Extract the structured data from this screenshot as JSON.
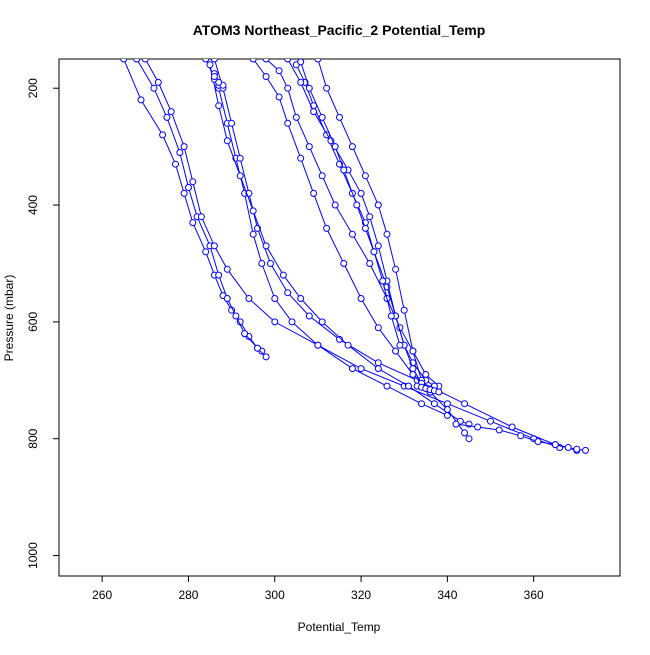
{
  "chart_data": {
    "type": "line",
    "title": "ATOM3 Northeast_Pacific_2 Potential_Temp",
    "xlabel": "Potential_Temp",
    "ylabel": "Pressure (mbar)",
    "xlim": [
      250,
      380
    ],
    "ylim": [
      1035,
      150
    ],
    "y_axis_inverted": true,
    "x_ticks": [
      "260",
      "280",
      "300",
      "320",
      "340",
      "360"
    ],
    "y_ticks": [
      "200",
      "400",
      "600",
      "800",
      "1000"
    ],
    "grid": false,
    "legend": "none",
    "line_color": "#0000ff",
    "marker": "open-circle",
    "series": [
      {
        "x": [
          265,
          269,
          274,
          277,
          279,
          281,
          284,
          286,
          288,
          290,
          292,
          294,
          296,
          297
        ],
        "y": [
          150,
          220,
          280,
          330,
          380,
          430,
          480,
          520,
          555,
          580,
          600,
          625,
          645,
          650
        ]
      },
      {
        "x": [
          268,
          272,
          275,
          278,
          280,
          282,
          285,
          287,
          289,
          291,
          293,
          296,
          298
        ],
        "y": [
          150,
          200,
          250,
          310,
          370,
          420,
          470,
          520,
          560,
          590,
          620,
          645,
          660
        ]
      },
      {
        "x": [
          270,
          273,
          276,
          279,
          281,
          283,
          286,
          289,
          294,
          300,
          310,
          320,
          330,
          340,
          350,
          360,
          366
        ],
        "y": [
          150,
          190,
          240,
          300,
          360,
          420,
          470,
          510,
          560,
          600,
          640,
          680,
          710,
          740,
          770,
          800,
          815
        ]
      },
      {
        "x": [
          284,
          287,
          289,
          291,
          293,
          295,
          297,
          300,
          304,
          310,
          318,
          326,
          334,
          340
        ],
        "y": [
          150,
          200,
          260,
          320,
          380,
          450,
          500,
          560,
          600,
          640,
          680,
          710,
          740,
          760
        ]
      },
      {
        "x": [
          286,
          288,
          290,
          292,
          294,
          296,
          299,
          303,
          308,
          315,
          324,
          333,
          344,
          355,
          365,
          370
        ],
        "y": [
          150,
          200,
          260,
          320,
          380,
          440,
          500,
          550,
          590,
          630,
          670,
          700,
          740,
          780,
          810,
          820
        ]
      },
      {
        "x": [
          285,
          287,
          289,
          292,
          295,
          298,
          302,
          306,
          311,
          317,
          324,
          331,
          337,
          343,
          345
        ],
        "y": [
          160,
          230,
          290,
          350,
          410,
          470,
          520,
          560,
          600,
          640,
          680,
          710,
          740,
          770,
          775
        ]
      },
      {
        "x": [
          286,
          286,
          287,
          288,
          287,
          286
        ],
        "y": [
          175,
          185,
          195,
          195,
          190,
          180
        ]
      },
      {
        "x": [
          295,
          298,
          301,
          303,
          306,
          309,
          312,
          316,
          320,
          324,
          328,
          332,
          336,
          340,
          344,
          345
        ],
        "y": [
          150,
          180,
          215,
          260,
          320,
          380,
          440,
          500,
          560,
          610,
          650,
          690,
          720,
          750,
          790,
          800
        ]
      },
      {
        "x": [
          298,
          301,
          303,
          305,
          308,
          311,
          314,
          318,
          322,
          326,
          329,
          332,
          335,
          338
        ],
        "y": [
          150,
          170,
          200,
          250,
          300,
          350,
          400,
          450,
          500,
          560,
          610,
          650,
          690,
          710
        ]
      },
      {
        "x": [
          305,
          307,
          309,
          312,
          315,
          318,
          321,
          323,
          326,
          328,
          330,
          332,
          335,
          337
        ],
        "y": [
          160,
          190,
          230,
          280,
          330,
          380,
          430,
          480,
          540,
          590,
          640,
          670,
          700,
          710
        ]
      },
      {
        "x": [
          310,
          312,
          315,
          318,
          321,
          324,
          326,
          328,
          330,
          332,
          334,
          336
        ],
        "y": [
          150,
          200,
          250,
          300,
          350,
          400,
          450,
          510,
          580,
          650,
          700,
          720
        ]
      },
      {
        "x": [
          303,
          306,
          309,
          313,
          317,
          320,
          322,
          324,
          326,
          328,
          330,
          332,
          334,
          336
        ],
        "y": [
          150,
          190,
          240,
          290,
          340,
          380,
          420,
          470,
          530,
          590,
          640,
          680,
          705,
          715
        ]
      },
      {
        "x": [
          306,
          308,
          311,
          314,
          316,
          319,
          321,
          323,
          325,
          327,
          329
        ],
        "y": [
          155,
          200,
          250,
          300,
          340,
          400,
          440,
          480,
          530,
          590,
          640
        ]
      },
      {
        "x": [
          342,
          347,
          352,
          357,
          361,
          365,
          368,
          370,
          372
        ],
        "y": [
          775,
          780,
          785,
          795,
          805,
          810,
          815,
          818,
          820
        ]
      },
      {
        "x": [
          333,
          334,
          335,
          336,
          337,
          338
        ],
        "y": [
          710,
          712,
          714,
          716,
          718,
          720
        ]
      }
    ]
  }
}
